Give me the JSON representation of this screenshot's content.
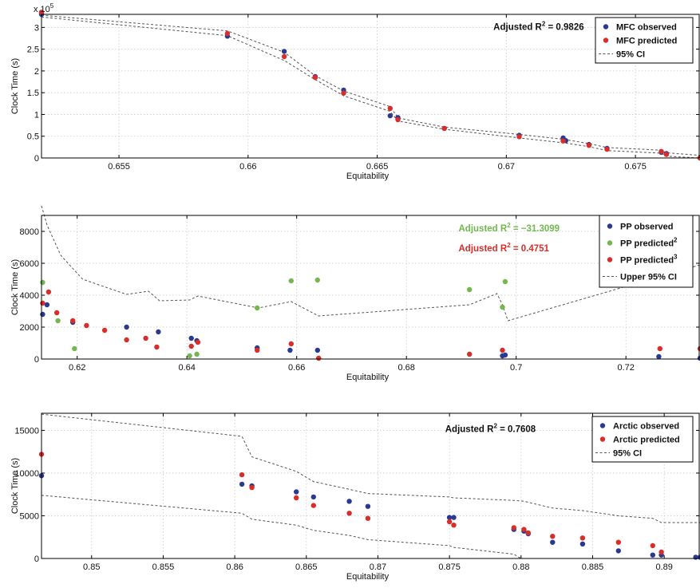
{
  "colors": {
    "observed": "#2b3a91",
    "predicted": "#d92d2a",
    "predicted2": "#72b84f",
    "ci": "#555555",
    "grid": "#c8c8c8"
  },
  "chart_data": [
    {
      "type": "scatter",
      "title": "",
      "xlabel": "Equitability",
      "ylabel": "Clock Time (s)",
      "exponent_label": "x 10",
      "exponent_power": "5",
      "xlim": [
        0.652,
        0.6775
      ],
      "ylim": [
        0,
        3.3
      ],
      "xticks": [
        0.655,
        0.66,
        0.665,
        0.67,
        0.675
      ],
      "xtick_labels": [
        "0.655",
        "0.66",
        "0.665",
        "0.67",
        "0.675"
      ],
      "yticks": [
        0,
        0.5,
        1,
        1.5,
        2,
        2.5,
        3
      ],
      "ytick_labels": [
        "0",
        "0.5",
        "1",
        "1.5",
        "2",
        "2.5",
        "3"
      ],
      "annotations": [
        {
          "prefix": "Adjusted R",
          "sup": "2",
          "suffix": " = 0.9826",
          "color": "#111111",
          "x": 0.6695,
          "y": 2.94
        }
      ],
      "legend": {
        "placement": "top-right",
        "entries": [
          {
            "label": "MFC observed",
            "marker": "dot",
            "color": "#2b3a91"
          },
          {
            "label": "MFC predicted",
            "marker": "dot",
            "color": "#d92d2a"
          },
          {
            "label": "95% CI",
            "marker": "dash",
            "color": "#555555"
          }
        ]
      },
      "series": [
        {
          "name": "MFC observed",
          "kind": "scatter",
          "color": "#2b3a91",
          "x": [
            0.652,
            0.6592,
            0.6614,
            0.6626,
            0.6637,
            0.6655,
            0.6658,
            0.6676,
            0.6705,
            0.6722,
            0.6723,
            0.6732,
            0.6739,
            0.676,
            0.6762,
            0.6775
          ],
          "y": [
            3.3,
            2.8,
            2.45,
            1.87,
            1.56,
            0.97,
            0.93,
            0.68,
            0.52,
            0.46,
            0.4,
            0.31,
            0.22,
            0.13,
            0.1,
            0.0
          ]
        },
        {
          "name": "MFC predicted",
          "kind": "scatter",
          "color": "#d92d2a",
          "x": [
            0.652,
            0.6592,
            0.6614,
            0.6626,
            0.6637,
            0.6655,
            0.6658,
            0.6676,
            0.6705,
            0.6722,
            0.6732,
            0.6739,
            0.676,
            0.6762,
            0.6775
          ],
          "y": [
            3.35,
            2.86,
            2.33,
            1.85,
            1.49,
            1.14,
            0.88,
            0.68,
            0.49,
            0.39,
            0.29,
            0.2,
            0.15,
            0.08,
            0.0
          ]
        },
        {
          "name": "95% CI upper",
          "kind": "dashed",
          "color": "#555555",
          "x": [
            0.652,
            0.6592,
            0.6614,
            0.6626,
            0.6637,
            0.6655,
            0.6658,
            0.6676,
            0.6705,
            0.6722,
            0.6732,
            0.6739,
            0.676,
            0.6762,
            0.6775
          ],
          "y": [
            3.28,
            2.92,
            2.43,
            1.89,
            1.54,
            1.18,
            0.92,
            0.71,
            0.54,
            0.43,
            0.33,
            0.24,
            0.18,
            0.12,
            0.06
          ]
        },
        {
          "name": "95% CI lower",
          "kind": "dashed",
          "color": "#555555",
          "x": [
            0.652,
            0.6592,
            0.6614,
            0.6626,
            0.6637,
            0.6655,
            0.6658,
            0.6676,
            0.6705,
            0.6722,
            0.6732,
            0.6739,
            0.676,
            0.6762,
            0.6775
          ],
          "y": [
            3.24,
            2.81,
            2.24,
            1.8,
            1.43,
            1.07,
            0.85,
            0.66,
            0.46,
            0.35,
            0.26,
            0.17,
            0.11,
            0.04,
            0.0
          ]
        }
      ]
    },
    {
      "type": "scatter",
      "title": "",
      "xlabel": "Equitability",
      "ylabel": "Clock Time (s)",
      "xlim": [
        0.6135,
        0.7335
      ],
      "ylim": [
        0,
        9000
      ],
      "xticks": [
        0.62,
        0.64,
        0.66,
        0.68,
        0.7,
        0.72
      ],
      "xtick_labels": [
        "0.62",
        "0.64",
        "0.66",
        "0.68",
        "0.7",
        "0.72"
      ],
      "yticks": [
        0,
        2000,
        4000,
        6000,
        8000
      ],
      "ytick_labels": [
        "0",
        "2000",
        "4000",
        "6000",
        "8000"
      ],
      "annotations": [
        {
          "prefix": "Adjusted R",
          "sup": "2",
          "suffix": " = −31.3099",
          "color": "#72b84f",
          "x": 0.6895,
          "y": 8000
        },
        {
          "prefix": "Adjusted R",
          "sup": "2",
          "suffix": " = 0.4751",
          "color": "#d92d2a",
          "x": 0.6895,
          "y": 6750
        }
      ],
      "legend": {
        "placement": "top-right",
        "entries": [
          {
            "label": "PP observed",
            "sup": "",
            "marker": "dot",
            "color": "#2b3a91"
          },
          {
            "label": "PP predicted",
            "sup": "2",
            "marker": "dot",
            "color": "#72b84f"
          },
          {
            "label": "PP predicted",
            "sup": "3",
            "marker": "dot",
            "color": "#d92d2a"
          },
          {
            "label": "Upper 95% CI",
            "sup": "",
            "marker": "dash",
            "color": "#555555"
          }
        ]
      },
      "series": [
        {
          "name": "PP observed",
          "kind": "scatter",
          "color": "#2b3a91",
          "x": [
            0.6137,
            0.6145,
            0.6192,
            0.629,
            0.6348,
            0.6408,
            0.6418,
            0.6528,
            0.6588,
            0.6638,
            0.6975,
            0.698,
            0.726,
            0.7335
          ],
          "y": [
            2800,
            3400,
            2300,
            2000,
            1700,
            1300,
            1150,
            700,
            550,
            550,
            200,
            250,
            150,
            50
          ]
        },
        {
          "name": "PP predicted 2",
          "kind": "scatter",
          "color": "#72b84f",
          "x": [
            0.6137,
            0.6165,
            0.6195,
            0.6405,
            0.6418,
            0.6528,
            0.659,
            0.6638,
            0.6915,
            0.6975,
            0.698
          ],
          "y": [
            4800,
            2400,
            650,
            200,
            300,
            3200,
            4900,
            4950,
            4350,
            3250,
            4850
          ]
        },
        {
          "name": "PP predicted 3",
          "kind": "scatter",
          "color": "#d92d2a",
          "x": [
            0.6137,
            0.6148,
            0.6163,
            0.6192,
            0.6217,
            0.625,
            0.629,
            0.6325,
            0.6345,
            0.6408,
            0.642,
            0.6528,
            0.659,
            0.664,
            0.6915,
            0.6975,
            0.7262,
            0.7335
          ],
          "y": [
            3500,
            4200,
            2900,
            2400,
            2100,
            1800,
            1200,
            1300,
            750,
            800,
            1050,
            550,
            950,
            50,
            300,
            550,
            650,
            650
          ]
        },
        {
          "name": "Upper 95% CI",
          "kind": "dashed",
          "color": "#555555",
          "x": [
            0.6135,
            0.6145,
            0.617,
            0.621,
            0.629,
            0.633,
            0.635,
            0.6405,
            0.642,
            0.653,
            0.659,
            0.664,
            0.6915,
            0.6965,
            0.6975,
            0.6985,
            0.7335
          ],
          "y": [
            9600,
            8400,
            6500,
            5000,
            4050,
            4250,
            3650,
            3700,
            3950,
            3200,
            3600,
            2700,
            3400,
            4100,
            3400,
            2400,
            5900
          ]
        }
      ]
    },
    {
      "type": "scatter",
      "title": "",
      "xlabel": "Equitability",
      "ylabel": "Clock Time (s)",
      "xlim": [
        0.8465,
        0.8925
      ],
      "ylim": [
        0,
        17000
      ],
      "xticks": [
        0.85,
        0.855,
        0.86,
        0.865,
        0.87,
        0.875,
        0.88,
        0.885,
        0.89
      ],
      "xtick_labels": [
        "0.85",
        "0.855",
        "0.86",
        "0.865",
        "0.87",
        "0.875",
        "0.88",
        "0.885",
        "0.89"
      ],
      "yticks": [
        0,
        5000,
        10000,
        15000
      ],
      "ytick_labels": [
        "0",
        "5000",
        "10000",
        "15000"
      ],
      "annotations": [
        {
          "prefix": "Adjusted R",
          "sup": "2",
          "suffix": " = 0.7608",
          "color": "#111111",
          "x": 0.8747,
          "y": 14800
        }
      ],
      "legend": {
        "placement": "top-right",
        "entries": [
          {
            "label": "Arctic observed",
            "marker": "dot",
            "color": "#2b3a91"
          },
          {
            "label": "Arctic predicted",
            "marker": "dot",
            "color": "#d92d2a"
          },
          {
            "label": "95% CI",
            "marker": "dash",
            "color": "#555555"
          }
        ]
      },
      "series": [
        {
          "name": "Arctic observed",
          "kind": "scatter",
          "color": "#2b3a91",
          "x": [
            0.8465,
            0.8605,
            0.8612,
            0.8643,
            0.8655,
            0.868,
            0.8693,
            0.875,
            0.8753,
            0.8795,
            0.8802,
            0.8805,
            0.8822,
            0.8843,
            0.8868,
            0.8892,
            0.8898,
            0.8922,
            0.8925
          ],
          "y": [
            9700,
            8700,
            8500,
            7800,
            7200,
            6700,
            6100,
            4800,
            4800,
            3400,
            3200,
            2900,
            1900,
            1700,
            900,
            400,
            400,
            150,
            150
          ]
        },
        {
          "name": "Arctic predicted",
          "kind": "scatter",
          "color": "#d92d2a",
          "x": [
            0.8465,
            0.8605,
            0.8612,
            0.8643,
            0.8655,
            0.868,
            0.8693,
            0.875,
            0.8753,
            0.8795,
            0.8802,
            0.8805,
            0.8822,
            0.8843,
            0.8868,
            0.8892,
            0.8898
          ],
          "y": [
            12200,
            9800,
            8300,
            7100,
            6200,
            5300,
            4700,
            4300,
            3900,
            3600,
            3400,
            3000,
            2600,
            2400,
            1900,
            1500,
            750
          ]
        },
        {
          "name": "95% CI upper",
          "kind": "dashed",
          "color": "#555555",
          "x": [
            0.8465,
            0.8605,
            0.8612,
            0.8643,
            0.8655,
            0.868,
            0.8693,
            0.875,
            0.8753,
            0.8795,
            0.8802,
            0.8822,
            0.8843,
            0.8868,
            0.8892,
            0.8898,
            0.8925
          ],
          "y": [
            16900,
            14300,
            11900,
            10200,
            9000,
            8100,
            7600,
            7200,
            7100,
            6800,
            6700,
            5900,
            5600,
            5000,
            4700,
            4200,
            4200
          ]
        },
        {
          "name": "95% CI lower",
          "kind": "dashed",
          "color": "#555555",
          "x": [
            0.8465,
            0.8605,
            0.8612,
            0.8643,
            0.8655,
            0.868,
            0.8693,
            0.875,
            0.8753,
            0.8795,
            0.88
          ],
          "y": [
            7400,
            5300,
            4600,
            3900,
            3300,
            2700,
            2200,
            1500,
            1300,
            500,
            0
          ]
        }
      ]
    }
  ]
}
